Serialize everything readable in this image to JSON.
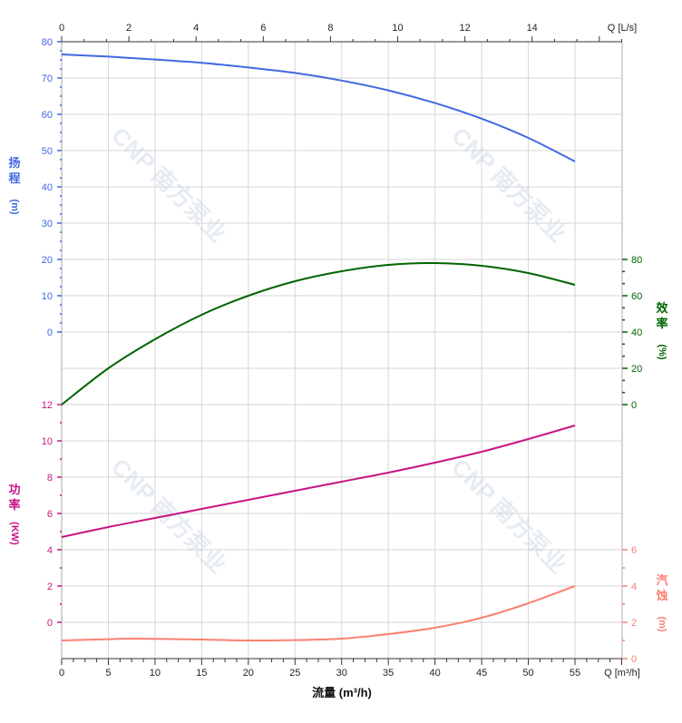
{
  "chart_data": {
    "type": "line",
    "grid": true,
    "x": {
      "label": "流量 (m³/h)",
      "unit_label": "Q [m³/h]",
      "range": [
        0,
        60
      ],
      "ticks": [
        0,
        5,
        10,
        15,
        20,
        25,
        30,
        35,
        40,
        45,
        50,
        55
      ]
    },
    "x_top": {
      "unit_label": "Q [L/s]",
      "range": [
        0,
        16.67
      ],
      "ticks": [
        0,
        2,
        4,
        6,
        8,
        10,
        12,
        14
      ]
    },
    "axes": {
      "head": {
        "label_chars": [
          "扬",
          "程"
        ],
        "unit": "(m)",
        "side": "left",
        "range": [
          0,
          80
        ],
        "ticks": [
          0,
          10,
          20,
          30,
          40,
          50,
          60,
          70,
          80
        ],
        "color": "#4169e1"
      },
      "power": {
        "label_chars": [
          "功",
          "率"
        ],
        "unit": "(KW)",
        "side": "left",
        "range": [
          0,
          12
        ],
        "ticks": [
          0,
          2,
          4,
          6,
          8,
          10,
          12
        ],
        "color": "#c71585"
      },
      "efficiency": {
        "label_chars": [
          "效",
          "率"
        ],
        "unit": "(%)",
        "side": "right",
        "range": [
          0,
          80
        ],
        "ticks": [
          0,
          20,
          40,
          60,
          80
        ],
        "color": "#006400"
      },
      "npsh": {
        "label_chars": [
          "汽",
          "蚀"
        ],
        "unit": "(m)",
        "side": "right",
        "range": [
          0,
          6
        ],
        "ticks": [
          0,
          2,
          4,
          6
        ],
        "color": "#fa8072"
      }
    },
    "series": [
      {
        "axis": "head",
        "x": [
          0,
          5,
          10,
          15,
          20,
          25,
          30,
          35,
          40,
          45,
          50,
          55
        ],
        "y": [
          76.5,
          75.9,
          75.1,
          74.2,
          72.9,
          71.4,
          69.3,
          66.6,
          63.1,
          58.8,
          53.5,
          47.0
        ]
      },
      {
        "axis": "efficiency",
        "x": [
          0,
          5,
          10,
          15,
          20,
          25,
          30,
          35,
          40,
          45,
          50,
          55
        ],
        "y": [
          0,
          20,
          36,
          49.5,
          60,
          68,
          73.5,
          77,
          78,
          76.5,
          72.5,
          66
        ]
      },
      {
        "axis": "power",
        "x": [
          0,
          5,
          10,
          15,
          20,
          25,
          30,
          35,
          40,
          45,
          50,
          55
        ],
        "y": [
          4.7,
          5.25,
          5.75,
          6.25,
          6.75,
          7.25,
          7.75,
          8.25,
          8.8,
          9.4,
          10.1,
          10.85
        ]
      },
      {
        "axis": "npsh",
        "x": [
          0,
          5,
          8,
          15,
          20,
          25,
          30,
          35,
          40,
          45,
          50,
          55
        ],
        "y": [
          1.0,
          1.07,
          1.1,
          1.05,
          1.0,
          1.02,
          1.1,
          1.35,
          1.7,
          2.25,
          3.05,
          4.0
        ]
      }
    ]
  },
  "watermark": "CNP 南方泵业"
}
